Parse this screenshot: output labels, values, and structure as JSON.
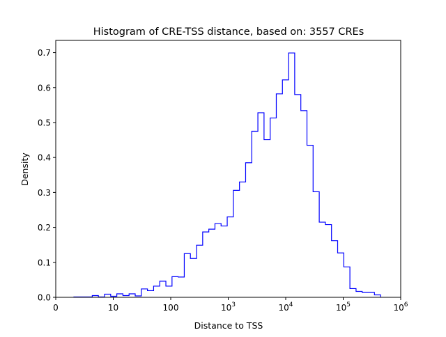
{
  "chart_data": {
    "type": "bar",
    "histtype": "step",
    "title": "Histogram of CRE-TSS distance, based on: 3557 CREs",
    "xlabel": "Distance to TSS",
    "ylabel": "Density",
    "x_scale": "symlog",
    "x_ticks": [
      {
        "label": "0",
        "pos": 0
      },
      {
        "label": "10",
        "pos": 1
      },
      {
        "label": "100",
        "pos": 2
      },
      {
        "label": "10",
        "sup": "3",
        "pos": 3
      },
      {
        "label": "10",
        "sup": "4",
        "pos": 4
      },
      {
        "label": "10",
        "sup": "5",
        "pos": 5
      },
      {
        "label": "10",
        "sup": "6",
        "pos": 6
      }
    ],
    "xlim_decades": [
      0,
      6
    ],
    "ylim": [
      0,
      0.735
    ],
    "y_ticks": [
      "0.0",
      "0.1",
      "0.2",
      "0.3",
      "0.4",
      "0.5",
      "0.6",
      "0.7"
    ],
    "bin_start_decade": 0.315,
    "bin_width_decade": 0.1067,
    "values": [
      0.001,
      0.001,
      0.001,
      0.005,
      0.001,
      0.009,
      0.003,
      0.01,
      0.005,
      0.01,
      0.004,
      0.024,
      0.019,
      0.032,
      0.046,
      0.032,
      0.059,
      0.058,
      0.125,
      0.111,
      0.149,
      0.187,
      0.195,
      0.211,
      0.204,
      0.23,
      0.306,
      0.33,
      0.385,
      0.475,
      0.528,
      0.451,
      0.513,
      0.582,
      0.622,
      0.699,
      0.58,
      0.534,
      0.435,
      0.302,
      0.215,
      0.208,
      0.162,
      0.127,
      0.087,
      0.025,
      0.017,
      0.014,
      0.014,
      0.007
    ],
    "color": "#0000ff",
    "grid": false
  }
}
